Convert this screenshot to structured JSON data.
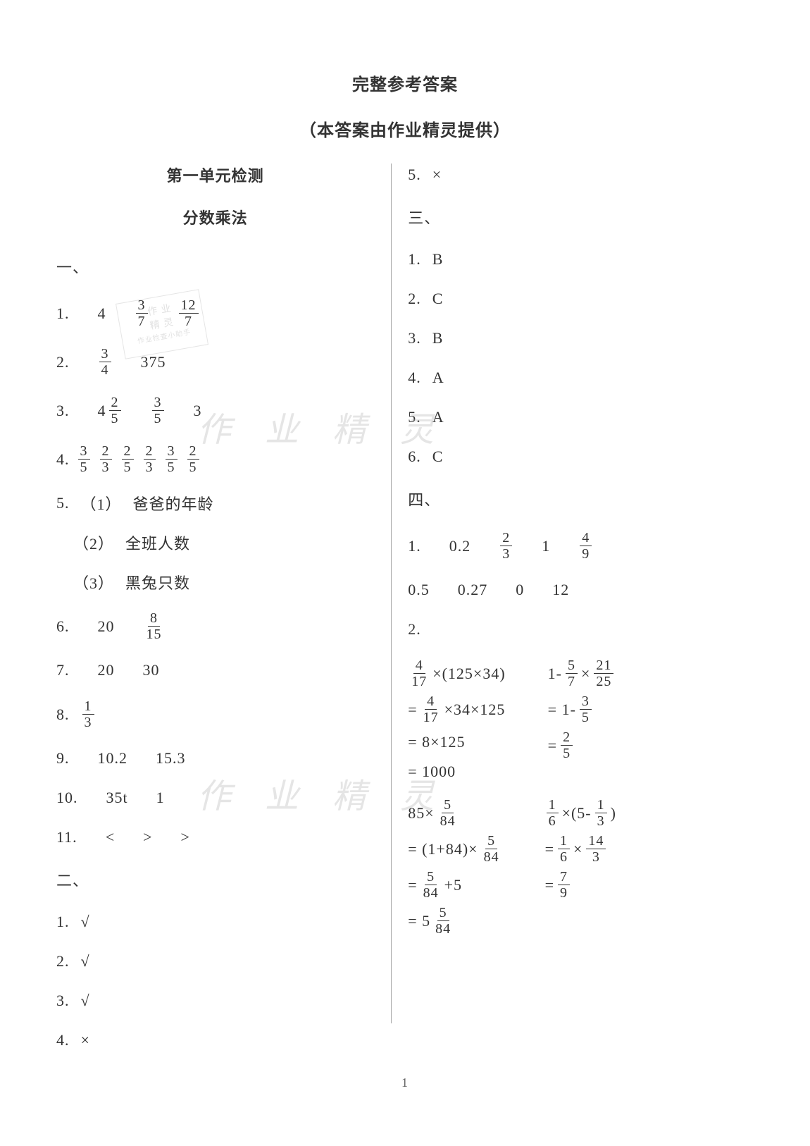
{
  "header": {
    "title": "完整参考答案",
    "subtitle": "（本答案由作业精灵提供）"
  },
  "unit": {
    "heading": "第一单元检测",
    "sub": "分数乘法"
  },
  "sections": {
    "one": "一、",
    "two": "二、",
    "three": "三、",
    "four": "四、"
  },
  "left": {
    "q1": {
      "label": "1.",
      "a": "4",
      "f1n": "3",
      "f1d": "7",
      "f2n": "12",
      "f2d": "7"
    },
    "q2": {
      "label": "2.",
      "f1n": "3",
      "f1d": "4",
      "b": "375"
    },
    "q3": {
      "label": "3.",
      "m1w": "4",
      "m1n": "2",
      "m1d": "5",
      "f1n": "3",
      "f1d": "5",
      "b": "3"
    },
    "q4": {
      "label": "4.",
      "f1n": "3",
      "f1d": "5",
      "f2n": "2",
      "f2d": "3",
      "f3n": "2",
      "f3d": "5",
      "f4n": "2",
      "f4d": "3",
      "f5n": "3",
      "f5d": "5",
      "f6n": "2",
      "f6d": "5"
    },
    "q5": {
      "label": "5.",
      "p1l": "（1）",
      "p1": "爸爸的年龄",
      "p2l": "（2）",
      "p2": "全班人数",
      "p3l": "（3）",
      "p3": "黑兔只数"
    },
    "q6": {
      "label": "6.",
      "a": "20",
      "f1n": "8",
      "f1d": "15"
    },
    "q7": {
      "label": "7.",
      "a": "20",
      "b": "30"
    },
    "q8": {
      "label": "8.",
      "f1n": "1",
      "f1d": "3"
    },
    "q9": {
      "label": "9.",
      "a": "10.2",
      "b": "15.3"
    },
    "q10": {
      "label": "10.",
      "a": "35t",
      "b": "1"
    },
    "q11": {
      "label": "11.",
      "a": "<",
      "b": ">",
      "c": ">"
    },
    "tf": {
      "q1": {
        "label": "1.",
        "v": "√"
      },
      "q2": {
        "label": "2.",
        "v": "√"
      },
      "q3": {
        "label": "3.",
        "v": "√"
      },
      "q4": {
        "label": "4.",
        "v": "×"
      }
    }
  },
  "right": {
    "tf5": {
      "label": "5.",
      "v": "×"
    },
    "mc": {
      "q1": {
        "label": "1.",
        "v": "B"
      },
      "q2": {
        "label": "2.",
        "v": "C"
      },
      "q3": {
        "label": "3.",
        "v": "B"
      },
      "q4": {
        "label": "4.",
        "v": "A"
      },
      "q5": {
        "label": "5.",
        "v": "A"
      },
      "q6": {
        "label": "6.",
        "v": "C"
      }
    },
    "s4": {
      "q1": {
        "label": "1.",
        "r1": {
          "a": "0.2",
          "bn": "2",
          "bd": "3",
          "c": "1",
          "dn": "4",
          "dd": "9"
        },
        "r2": {
          "a": "0.5",
          "b": "0.27",
          "c": "0",
          "d": "12"
        }
      },
      "q2": {
        "label": "2."
      }
    },
    "calc1a": {
      "s1a": "4",
      "s1b": "17",
      "s1c": "×(125×34)",
      "s2a": "=",
      "s2b": "4",
      "s2c": "17",
      "s2d": "×34×125",
      "s3": "= 8×125",
      "s4": "= 1000"
    },
    "calc1b": {
      "s1a": "1-",
      "s1b": "5",
      "s1c": "7",
      "s1d": "×",
      "s1e": "21",
      "s1f": "25",
      "s2a": "= 1-",
      "s2b": "3",
      "s2c": "5",
      "s3a": "=",
      "s3b": "2",
      "s3c": "5"
    },
    "calc2a": {
      "s1a": "85×",
      "s1b": "5",
      "s1c": "84",
      "s2a": "= (1+84)×",
      "s2b": "5",
      "s2c": "84",
      "s3a": "=",
      "s3b": "5",
      "s3c": "84",
      "s3d": "+5",
      "s4a": "= 5",
      "s4b": "5",
      "s4c": "84"
    },
    "calc2b": {
      "s1a": "1",
      "s1b": "6",
      "s1c": "×(5-",
      "s1d": "1",
      "s1e": "3",
      "s1f": ")",
      "s2a": "=",
      "s2b": "1",
      "s2c": "6",
      "s2d": "×",
      "s2e": "14",
      "s2f": "3",
      "s3a": "=",
      "s3b": "7",
      "s3c": "9"
    }
  },
  "watermark": {
    "text": "作 业 精 灵",
    "stamp1": "作 业",
    "stamp2": "精 灵",
    "stamp3": "作业检查小助手"
  },
  "pagenum": "1",
  "colors": {
    "text": "#333333",
    "bg": "#ffffff",
    "divider": "#aaaaaa",
    "wm": "rgba(180,180,180,0.35)"
  }
}
